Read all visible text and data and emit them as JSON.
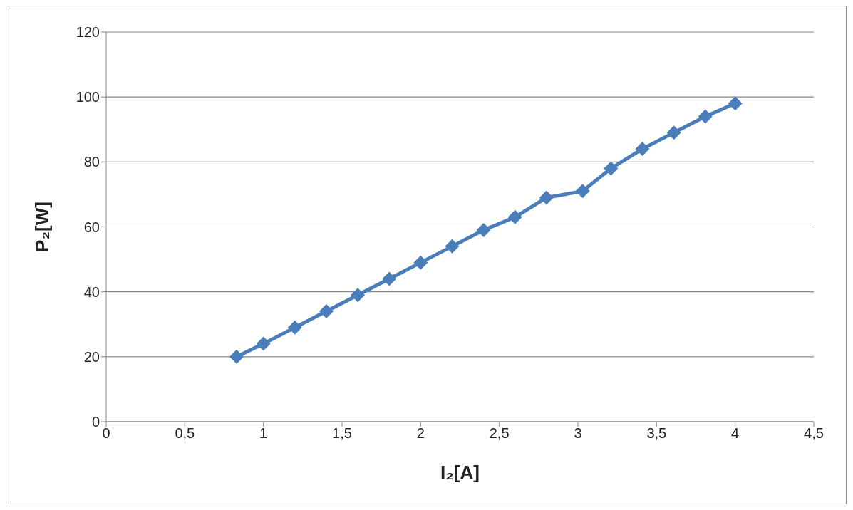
{
  "chart_data": {
    "type": "line",
    "xlabel": "I₂[A]",
    "ylabel": "P₂[W]",
    "x": [
      0.83,
      1.0,
      1.2,
      1.4,
      1.6,
      1.8,
      2.0,
      2.2,
      2.4,
      2.6,
      2.8,
      3.03,
      3.21,
      3.41,
      3.61,
      3.81,
      4.0
    ],
    "series": [
      {
        "color": "#4a7ebb",
        "values": [
          20,
          24,
          29,
          34,
          39,
          44,
          49,
          54,
          59,
          63,
          69,
          71,
          78,
          84,
          89,
          94,
          98
        ]
      }
    ],
    "xlim": [
      0,
      4.5
    ],
    "xticks": [
      0,
      {
        "value": 0.5,
        "label": "0,5"
      },
      1,
      {
        "value": 1.5,
        "label": "1,5"
      },
      2,
      {
        "value": 2.5,
        "label": "2,5"
      },
      3,
      {
        "value": 3.5,
        "label": "3,5"
      },
      4,
      {
        "value": 4.5,
        "label": "4,5"
      }
    ],
    "ylim": [
      0,
      120
    ],
    "yticks": [
      0,
      20,
      40,
      60,
      80,
      100,
      120
    ],
    "grid": "y",
    "marker": "diamond",
    "line_style": "solid"
  }
}
